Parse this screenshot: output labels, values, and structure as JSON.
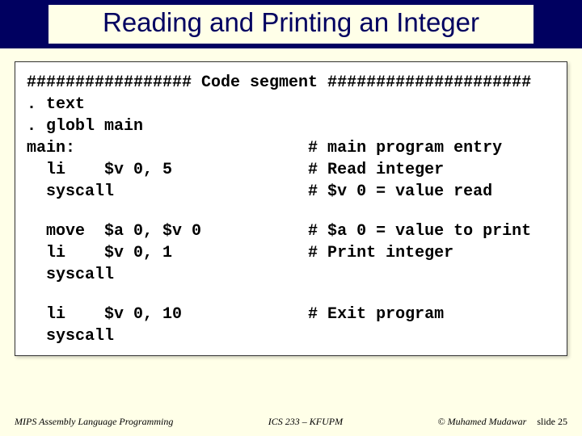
{
  "colors": {
    "page_bg": "#ffffe8",
    "header_bar": "#000060",
    "title_color": "#000060",
    "code_bg": "#ffffff",
    "code_border": "#333333",
    "code_text": "#000000",
    "footer_text": "#000000"
  },
  "typography": {
    "title_font": "Comic Sans MS",
    "title_size_pt": 25,
    "code_font": "Courier New",
    "code_size_pt": 15,
    "code_weight": "bold",
    "footer_font": "Times New Roman",
    "footer_size_pt": 9,
    "footer_style": "italic"
  },
  "title": "Reading and Printing an Integer",
  "code": {
    "lines": [
      "################# Code segment #####################",
      ". text",
      ". globl main",
      "main:                        # main program entry",
      "  li    $v 0, 5              # Read integer",
      "  syscall                    # $v 0 = value read",
      "",
      "  move  $a 0, $v 0           # $a 0 = value to print",
      "  li    $v 0, 1              # Print integer",
      "  syscall",
      "",
      "  li    $v 0, 10             # Exit program",
      "  syscall"
    ]
  },
  "footer": {
    "left": "MIPS Assembly Language Programming",
    "center": "ICS 233 – KFUPM",
    "author": "© Muhamed Mudawar",
    "slide": "slide 25"
  }
}
